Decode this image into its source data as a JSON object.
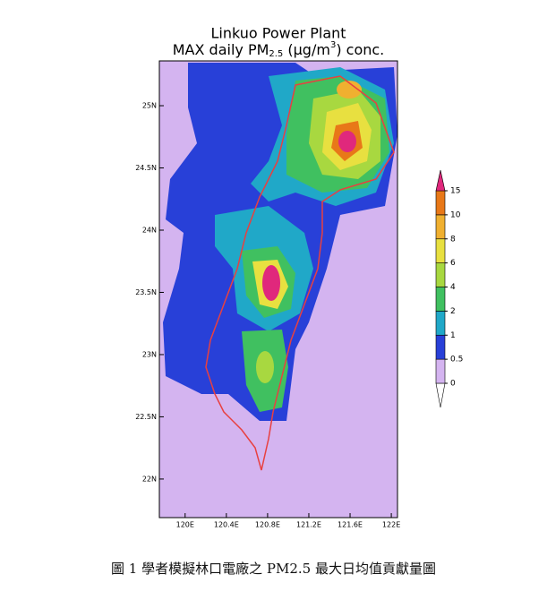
{
  "header": {
    "title": "Linkuo Power Plant",
    "subtitle": {
      "pre": "MAX daily PM",
      "sub": "2.5",
      "mid": " (μg/m",
      "sup": "3",
      "post": ") conc."
    }
  },
  "map": {
    "lonlim": [
      119.75,
      122.06
    ],
    "latlim": [
      21.69,
      25.36
    ],
    "lon_ticks": [
      {
        "value": 120,
        "label": "120E"
      },
      {
        "value": 120.4,
        "label": "120.4E"
      },
      {
        "value": 120.8,
        "label": "120.8E"
      },
      {
        "value": 121.2,
        "label": "121.2E"
      },
      {
        "value": 121.6,
        "label": "121.6E"
      },
      {
        "value": 122,
        "label": "122E"
      }
    ],
    "lat_ticks": [
      {
        "value": 22,
        "label": "22N"
      },
      {
        "value": 22.5,
        "label": "22.5N"
      },
      {
        "value": 23,
        "label": "23N"
      },
      {
        "value": 23.5,
        "label": "23.5N"
      },
      {
        "value": 24,
        "label": "24N"
      },
      {
        "value": 24.5,
        "label": "24.5N"
      },
      {
        "value": 25,
        "label": "25N"
      }
    ]
  },
  "colorbar": {
    "levels": [
      0,
      0.5,
      1,
      2,
      4,
      6,
      8,
      10,
      15
    ],
    "colors": [
      "#ffffff",
      "#d4b4f0",
      "#2840d8",
      "#20a8c8",
      "#40c060",
      "#a8d840",
      "#e8e040",
      "#f0b030",
      "#e87818",
      "#e0287c"
    ]
  },
  "caption": "圖 1  學者模擬林口電廠之 PM2.5 最大日均值貢獻量圖"
}
